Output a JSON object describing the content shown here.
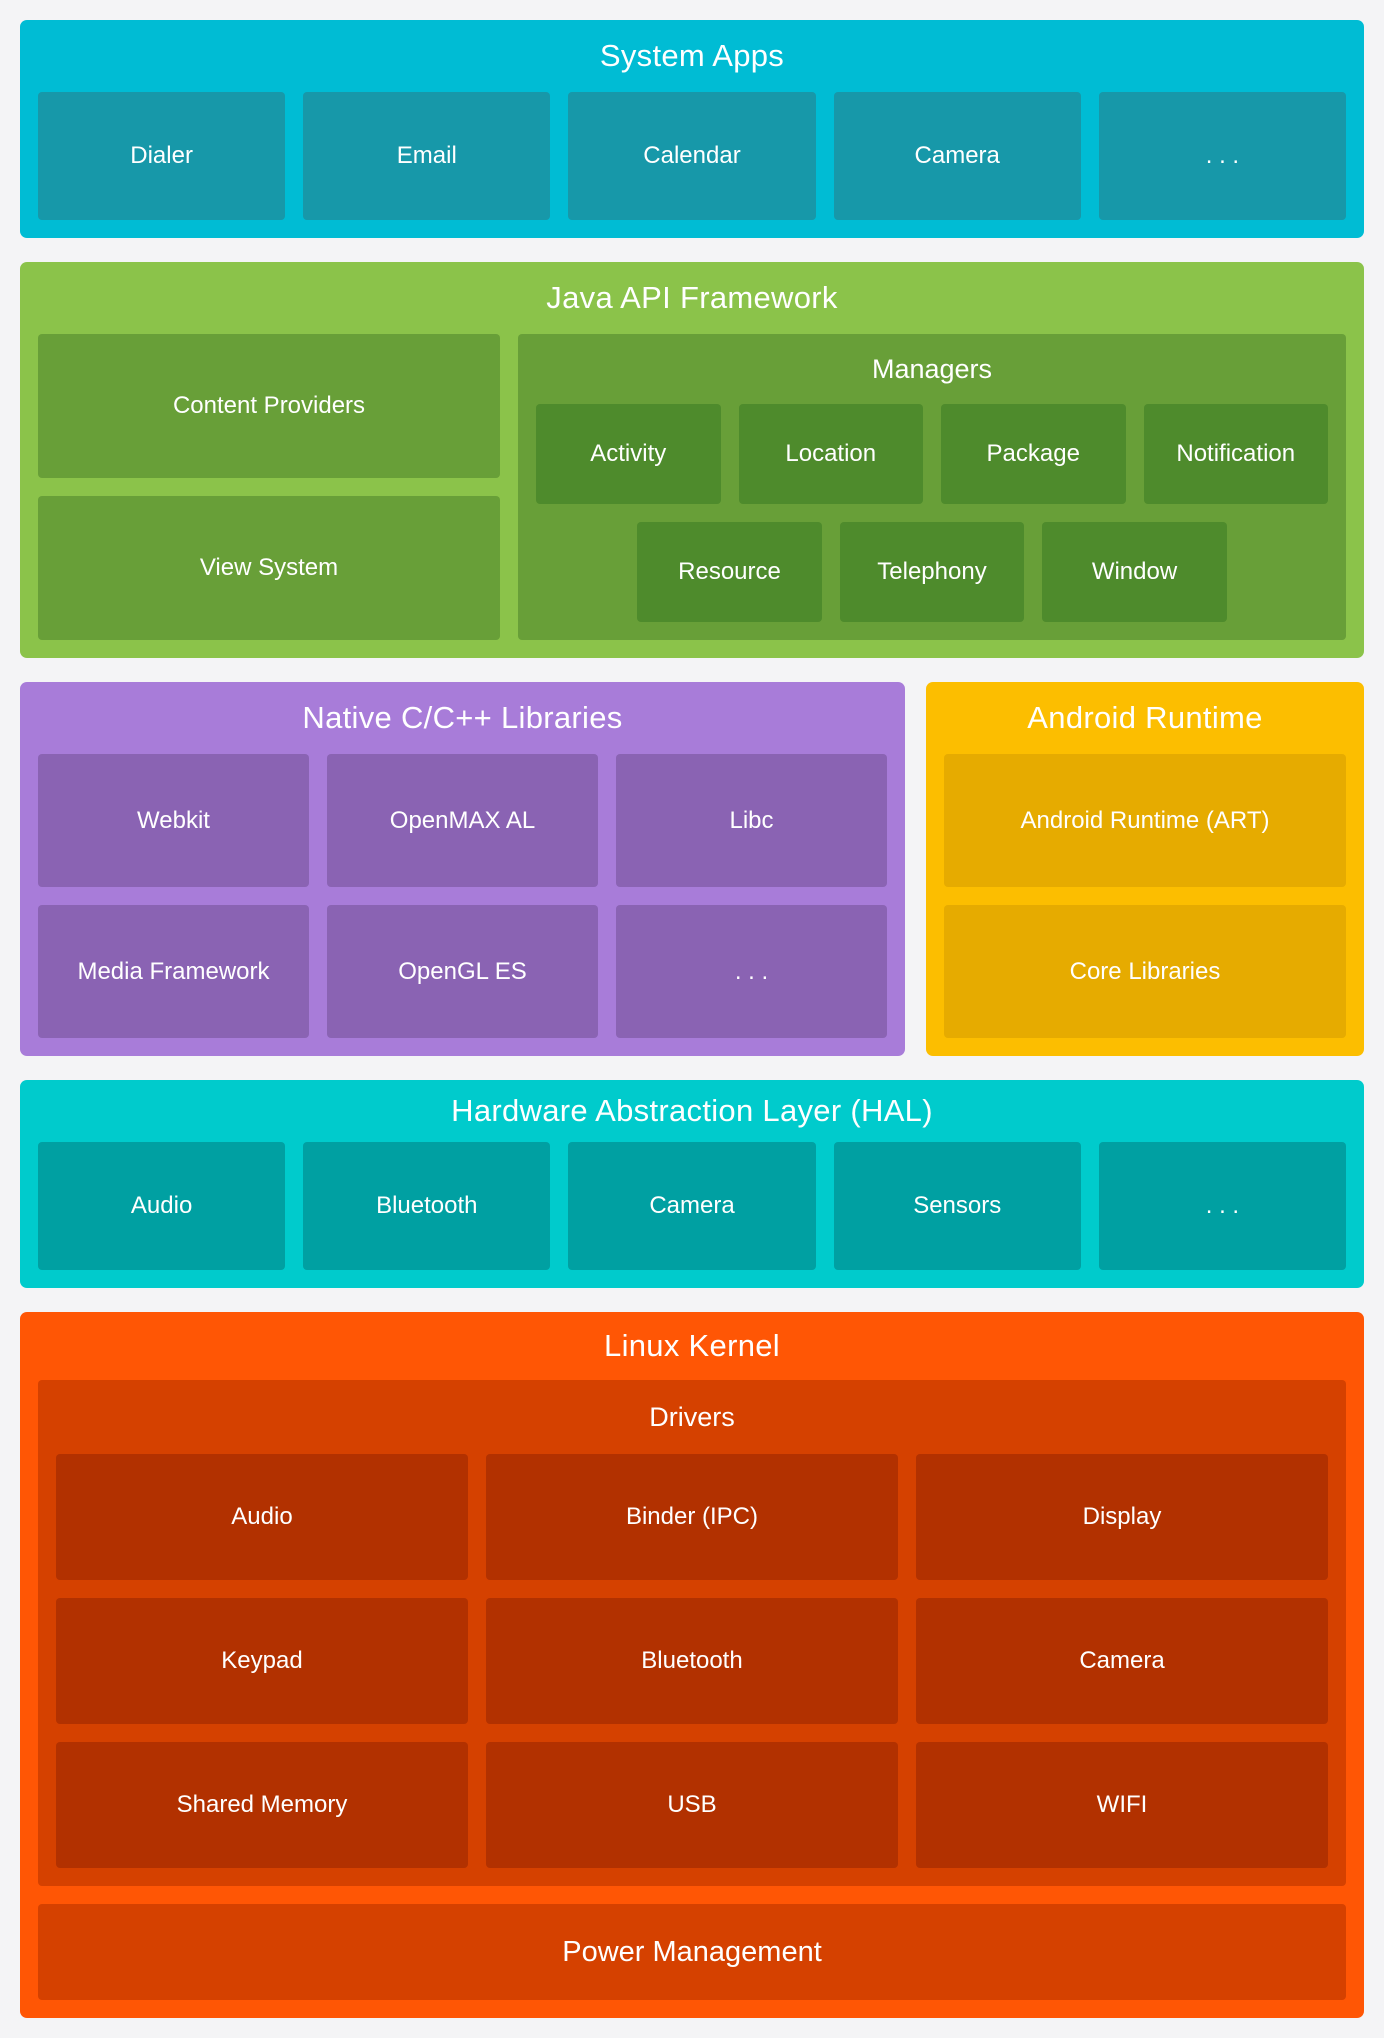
{
  "page": {
    "background": "#f4f4f6",
    "text_color": "#ffffff"
  },
  "layers": {
    "system_apps": {
      "title": "System Apps",
      "colors": {
        "bg": "#00BCD4",
        "item": "#1798A9"
      },
      "items": [
        "Dialer",
        "Email",
        "Calendar",
        "Camera",
        ". . ."
      ]
    },
    "java_api": {
      "title": "Java API Framework",
      "colors": {
        "bg": "#8BC34A",
        "box": "#689F38",
        "item": "#4E8B2C"
      },
      "left_items": [
        "Content Providers",
        "View System"
      ],
      "managers": {
        "title": "Managers",
        "row1": [
          "Activity",
          "Location",
          "Package",
          "Notification"
        ],
        "row2": [
          "Resource",
          "Telephony",
          "Window"
        ]
      }
    },
    "native_libs": {
      "title": "Native C/C++ Libraries",
      "colors": {
        "bg": "#A87CD9",
        "item": "#8A63B3"
      },
      "items": [
        "Webkit",
        "OpenMAX AL",
        "Libc",
        "Media Framework",
        "OpenGL ES",
        ". . ."
      ]
    },
    "android_runtime": {
      "title": "Android Runtime",
      "colors": {
        "bg": "#FCBE00",
        "item": "#E6AB00"
      },
      "items": [
        "Android Runtime (ART)",
        "Core Libraries"
      ]
    },
    "hal": {
      "title": "Hardware Abstraction Layer (HAL)",
      "colors": {
        "bg": "#00CBCC",
        "item": "#00A0A2"
      },
      "items": [
        "Audio",
        "Bluetooth",
        "Camera",
        "Sensors",
        ". . ."
      ]
    },
    "linux_kernel": {
      "title": "Linux Kernel",
      "colors": {
        "bg": "#FF5605",
        "box": "#D54100",
        "item": "#B23100"
      },
      "drivers": {
        "title": "Drivers",
        "items": [
          "Audio",
          "Binder (IPC)",
          "Display",
          "Keypad",
          "Bluetooth",
          "Camera",
          "Shared Memory",
          "USB",
          "WIFI"
        ]
      },
      "power": "Power Management"
    }
  }
}
